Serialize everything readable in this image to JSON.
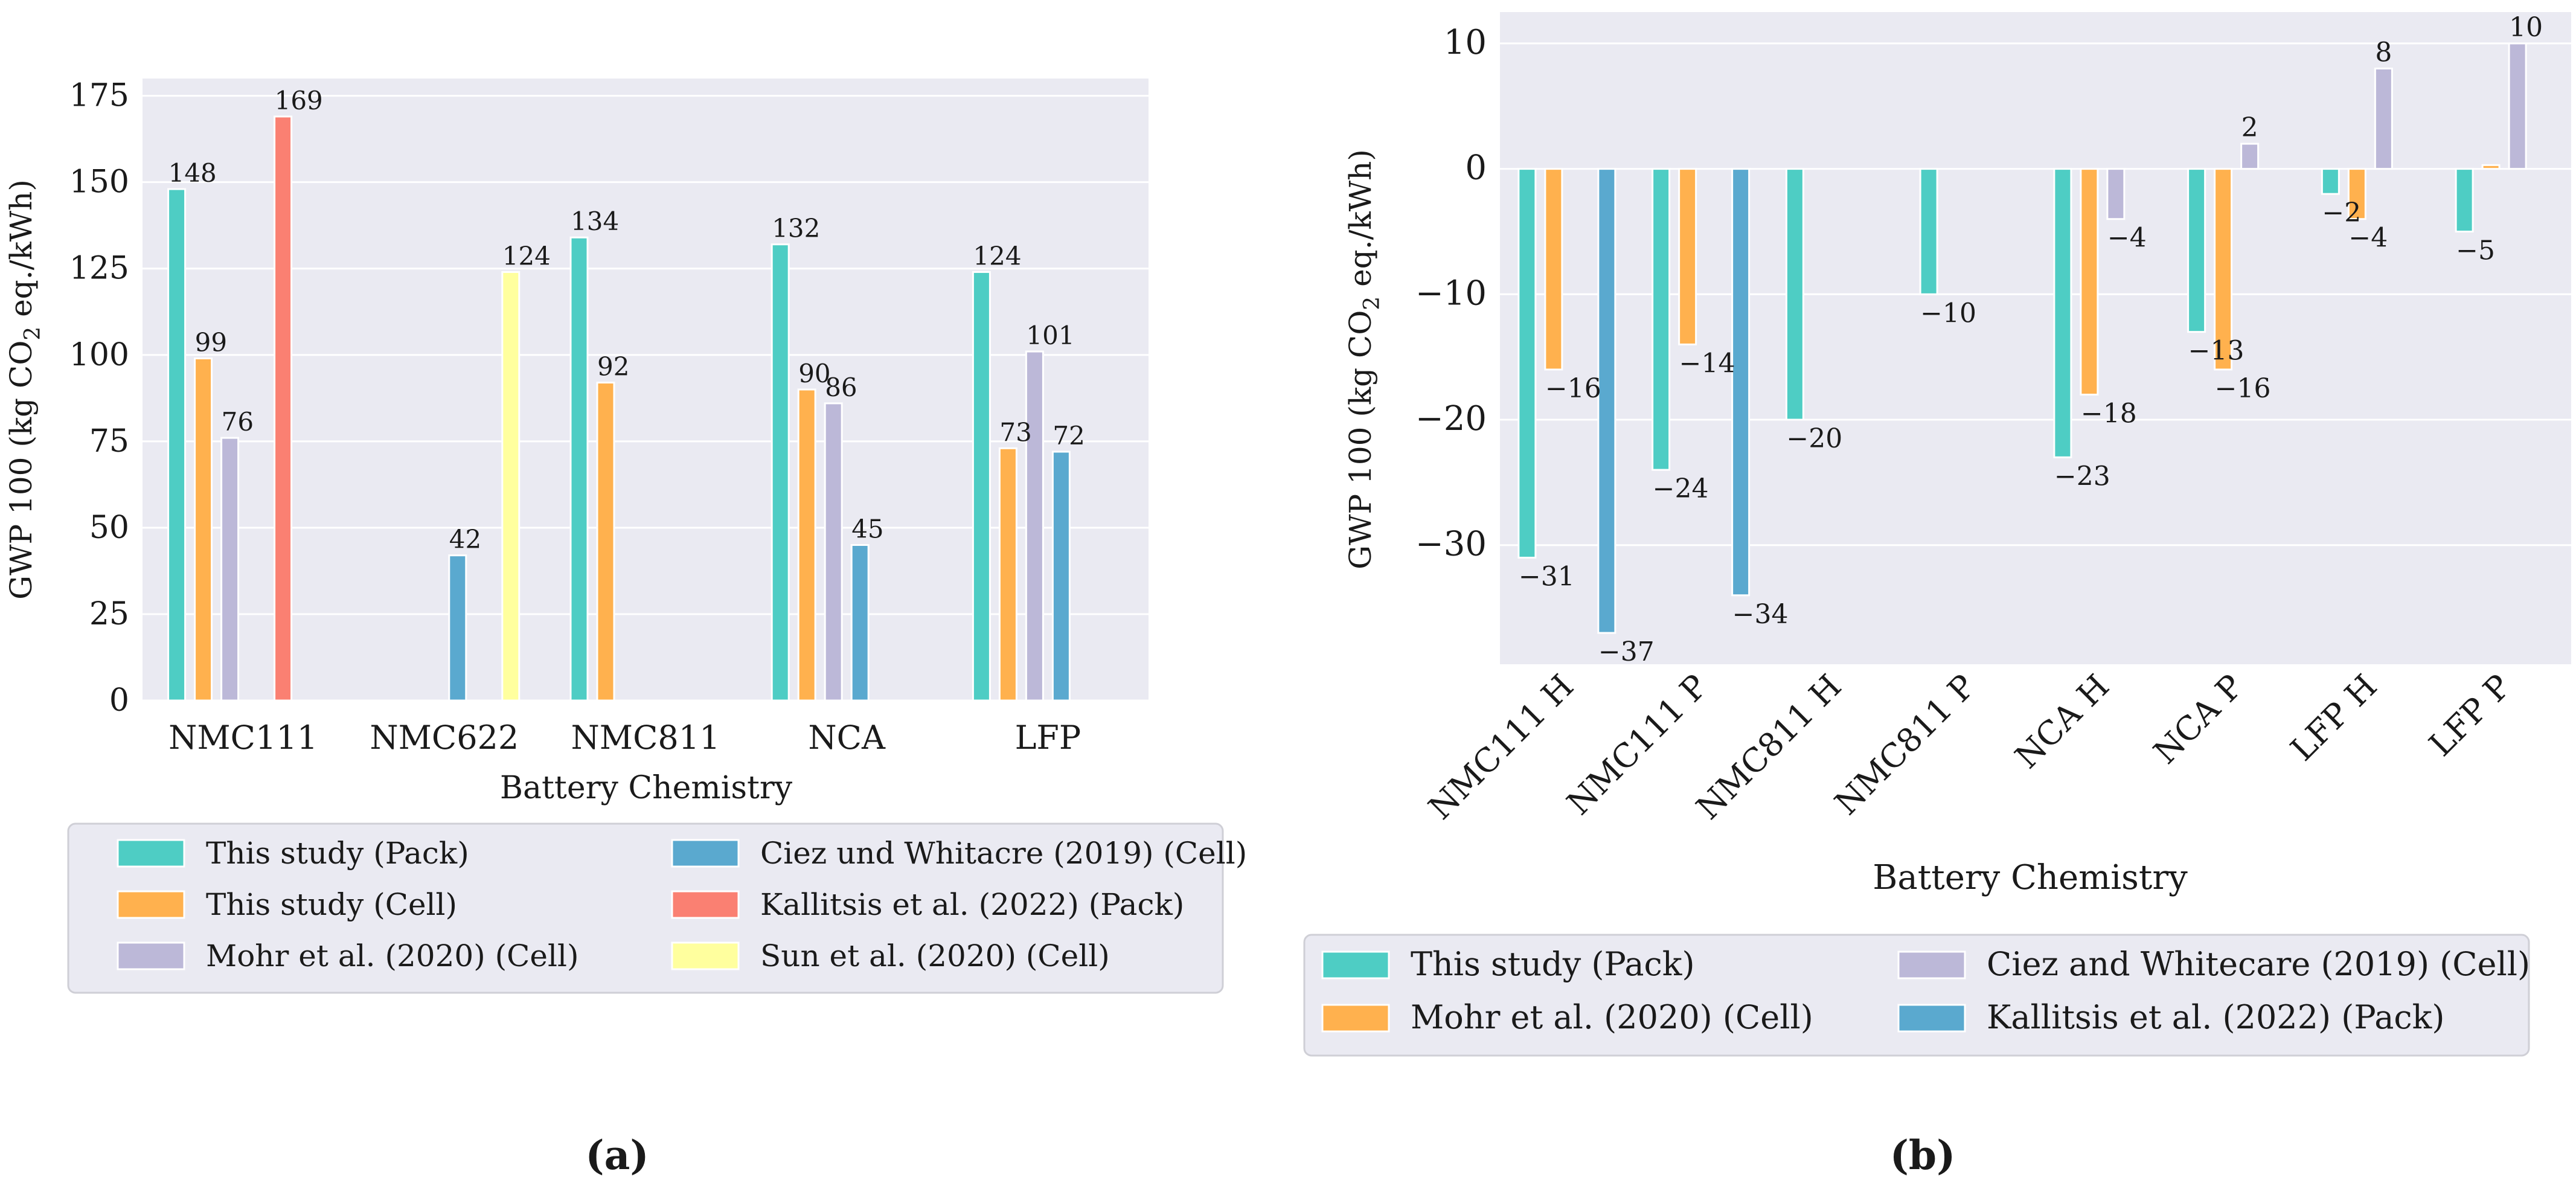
{
  "figure": {
    "panel_labels": [
      "(a)",
      "(b)"
    ]
  },
  "chart_data": [
    {
      "type": "bar",
      "panel": "(a)",
      "title": "",
      "xlabel": "Battery Chemistry",
      "ylabel": "GWP 100 (kg CO₂ eq./kWh)",
      "ylim": [
        0,
        180
      ],
      "yticks": [
        0,
        25,
        50,
        75,
        100,
        125,
        150,
        175
      ],
      "ytick_labels": [
        "0",
        "25",
        "50",
        "75",
        "100",
        "125",
        "150",
        "175"
      ],
      "grid": true,
      "categories": [
        "NMC111",
        "NMC622",
        "NMC811",
        "NCA",
        "LFP"
      ],
      "series": [
        {
          "name": "This study (Pack)",
          "color": "#4ecdc4",
          "values": [
            148,
            null,
            134,
            132,
            124
          ]
        },
        {
          "name": "This study (Cell)",
          "color": "#ffb14e",
          "values": [
            99,
            null,
            92,
            90,
            73
          ]
        },
        {
          "name": "Mohr et al. (2020) (Cell)",
          "color": "#bcb8d8",
          "values": [
            76,
            null,
            null,
            86,
            101
          ]
        },
        {
          "name": "Ciez und Whitacre (2019) (Cell)",
          "color": "#5aa9cf",
          "values": [
            null,
            42,
            null,
            45,
            72
          ]
        },
        {
          "name": "Kallitsis et al. (2022) (Pack)",
          "color": "#fa8072",
          "values": [
            169,
            null,
            null,
            null,
            null
          ]
        },
        {
          "name": "Sun et al. (2020) (Cell)",
          "color": "#ffff9e",
          "values": [
            null,
            124,
            null,
            null,
            null
          ]
        }
      ],
      "data_labels": [
        {
          "category": "NMC111",
          "series": "This study (Pack)",
          "text": "148"
        },
        {
          "category": "NMC111",
          "series": "This study (Cell)",
          "text": "99"
        },
        {
          "category": "NMC111",
          "series": "Mohr et al. (2020) (Cell)",
          "text": "76"
        },
        {
          "category": "NMC111",
          "series": "Kallitsis et al. (2022) (Pack)",
          "text": "169"
        },
        {
          "category": "NMC622",
          "series": "Ciez und Whitacre (2019) (Cell)",
          "text": "42"
        },
        {
          "category": "NMC622",
          "series": "Sun et al. (2020) (Cell)",
          "text": "124"
        },
        {
          "category": "NMC811",
          "series": "This study (Pack)",
          "text": "134"
        },
        {
          "category": "NMC811",
          "series": "This study (Cell)",
          "text": "92"
        },
        {
          "category": "NCA",
          "series": "This study (Pack)",
          "text": "132"
        },
        {
          "category": "NCA",
          "series": "This study (Cell)",
          "text": "90"
        },
        {
          "category": "NCA",
          "series": "Mohr et al. (2020) (Cell)",
          "text": "86"
        },
        {
          "category": "NCA",
          "series": "Ciez und Whitacre (2019) (Cell)",
          "text": "45"
        },
        {
          "category": "LFP",
          "series": "This study (Pack)",
          "text": "124"
        },
        {
          "category": "LFP",
          "series": "This study (Cell)",
          "text": "73"
        },
        {
          "category": "LFP",
          "series": "Mohr et al. (2020) (Cell)",
          "text": "101"
        },
        {
          "category": "LFP",
          "series": "Ciez und Whitacre (2019) (Cell)",
          "text": "72"
        }
      ],
      "legend": {
        "placement": "below",
        "columns": 2,
        "entries": [
          "This study (Pack)",
          "Ciez und Whitacre (2019) (Cell)",
          "This study (Cell)",
          "Kallitsis et al. (2022) (Pack)",
          "Mohr et al. (2020) (Cell)",
          "Sun et al. (2020) (Cell)"
        ]
      }
    },
    {
      "type": "bar",
      "panel": "(b)",
      "title": "",
      "xlabel": "Battery Chemistry",
      "ylabel": "GWP 100 (kg CO₂ eq./kWh)",
      "ylim": [
        -39.5,
        12.5
      ],
      "yticks": [
        -30,
        -20,
        -10,
        0,
        10
      ],
      "ytick_labels": [
        "−30",
        "−20",
        "−10",
        "0",
        "10"
      ],
      "grid": true,
      "categories": [
        "NMC111 H",
        "NMC111 P",
        "NMC811 H",
        "NMC811 P",
        "NCA H",
        "NCA P",
        "LFP H",
        "LFP P"
      ],
      "series": [
        {
          "name": "This study (Pack)",
          "color": "#4ecdc4",
          "values": [
            -31,
            -24,
            -20,
            -10,
            -23,
            -13,
            -2,
            -5
          ]
        },
        {
          "name": "Mohr et al. (2020) (Cell)",
          "color": "#ffb14e",
          "values": [
            -16,
            -14,
            null,
            null,
            -18,
            -16,
            -4,
            0.3
          ]
        },
        {
          "name": "Ciez and Whitecare (2019) (Cell)",
          "color": "#bcb8d8",
          "values": [
            null,
            null,
            null,
            null,
            -4,
            2,
            8,
            10
          ]
        },
        {
          "name": "Kallitsis et al. (2022) (Pack)",
          "color": "#5aa9cf",
          "values": [
            -37,
            -34,
            null,
            null,
            null,
            null,
            null,
            null
          ]
        }
      ],
      "data_labels": [
        {
          "category": "NMC111 H",
          "series": "This study (Pack)",
          "text": "−31"
        },
        {
          "category": "NMC111 H",
          "series": "Mohr et al. (2020) (Cell)",
          "text": "−16"
        },
        {
          "category": "NMC111 H",
          "series": "Kallitsis et al. (2022) (Pack)",
          "text": "−37"
        },
        {
          "category": "NMC111 P",
          "series": "This study (Pack)",
          "text": "−24"
        },
        {
          "category": "NMC111 P",
          "series": "Mohr et al. (2020) (Cell)",
          "text": "−14"
        },
        {
          "category": "NMC111 P",
          "series": "Kallitsis et al. (2022) (Pack)",
          "text": "−34"
        },
        {
          "category": "NMC811 H",
          "series": "This study (Pack)",
          "text": "−20"
        },
        {
          "category": "NMC811 P",
          "series": "This study (Pack)",
          "text": "−10"
        },
        {
          "category": "NCA H",
          "series": "This study (Pack)",
          "text": "−23"
        },
        {
          "category": "NCA H",
          "series": "Mohr et al. (2020) (Cell)",
          "text": "−18"
        },
        {
          "category": "NCA H",
          "series": "Ciez and Whitecare (2019) (Cell)",
          "text": "−4"
        },
        {
          "category": "NCA P",
          "series": "This study (Pack)",
          "text": "−13"
        },
        {
          "category": "NCA P",
          "series": "Mohr et al. (2020) (Cell)",
          "text": "−16"
        },
        {
          "category": "NCA P",
          "series": "Ciez and Whitecare (2019) (Cell)",
          "text": "2"
        },
        {
          "category": "LFP H",
          "series": "This study (Pack)",
          "text": "−2"
        },
        {
          "category": "LFP H",
          "series": "Mohr et al. (2020) (Cell)",
          "text": "−4"
        },
        {
          "category": "LFP H",
          "series": "Ciez and Whitecare (2019) (Cell)",
          "text": "8"
        },
        {
          "category": "LFP P",
          "series": "This study (Pack)",
          "text": "−5"
        },
        {
          "category": "LFP P",
          "series": "Ciez and Whitecare (2019) (Cell)",
          "text": "10"
        }
      ],
      "legend": {
        "placement": "below",
        "columns": 2,
        "entries": [
          "This study (Pack)",
          "Ciez and Whitecare (2019) (Cell)",
          "Mohr et al. (2020) (Cell)",
          "Kallitsis et al. (2022) (Pack)"
        ]
      }
    }
  ]
}
